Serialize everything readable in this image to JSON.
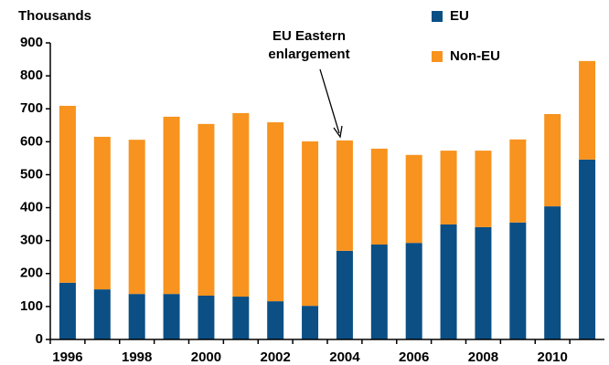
{
  "chart_data": {
    "type": "stacked_bar",
    "y_label": "Thousands",
    "annotation": [
      "EU Eastern",
      "enlargement"
    ],
    "categories": [
      "1996",
      null,
      "1998",
      null,
      "2000",
      null,
      "2002",
      null,
      "2004",
      null,
      "2006",
      null,
      "2008",
      null,
      "2010",
      null
    ],
    "series": [
      {
        "name": "EU",
        "color": "#0b4f85",
        "values": [
          172,
          152,
          138,
          138,
          133,
          130,
          116,
          102,
          269,
          288,
          293,
          349,
          341,
          355,
          404,
          546
        ]
      },
      {
        "name": "Non-EU",
        "color": "#f7931e",
        "values": [
          537,
          463,
          468,
          538,
          521,
          557,
          543,
          499,
          335,
          291,
          267,
          224,
          232,
          252,
          280,
          299
        ]
      }
    ],
    "ylim": [
      0,
      900
    ],
    "yticks": [
      0,
      100,
      200,
      300,
      400,
      500,
      600,
      700,
      800,
      900
    ],
    "legend": "top-right"
  }
}
